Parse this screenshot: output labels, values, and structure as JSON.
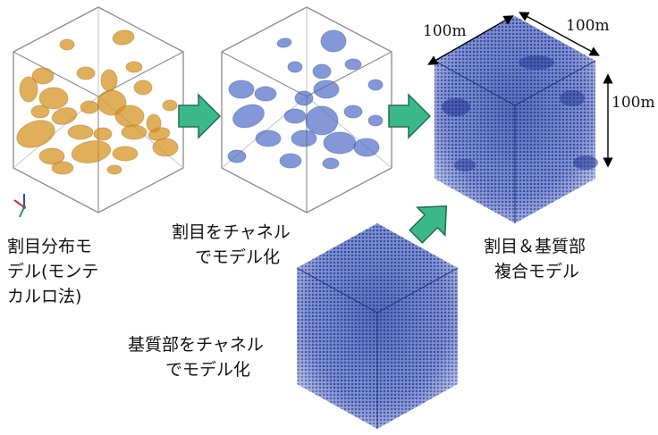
{
  "labels": {
    "fracture_model": [
      "割目分布モ",
      "デル(モンテ",
      "カルロ法)"
    ],
    "fracture_channel": [
      "割目をチャネル",
      "でモデル化"
    ],
    "composite": [
      "割目＆基質部",
      "複合モデル"
    ],
    "matrix_channel": [
      "基質部をチャネル",
      "でモデル化"
    ]
  },
  "dimensions": {
    "top_left": "100m",
    "top_right": "100m",
    "right": "100m"
  },
  "colors": {
    "fracture_orange": "#d4901c",
    "fracture_blue": "#3f5fb8",
    "matrix_blue": "#3349a8",
    "arrow_fill": "#3cb98a",
    "arrow_stroke": "#1e6e4e",
    "cube_edge": "#8a8a8a"
  },
  "icons": {
    "axis": "axis-triad-icon"
  }
}
